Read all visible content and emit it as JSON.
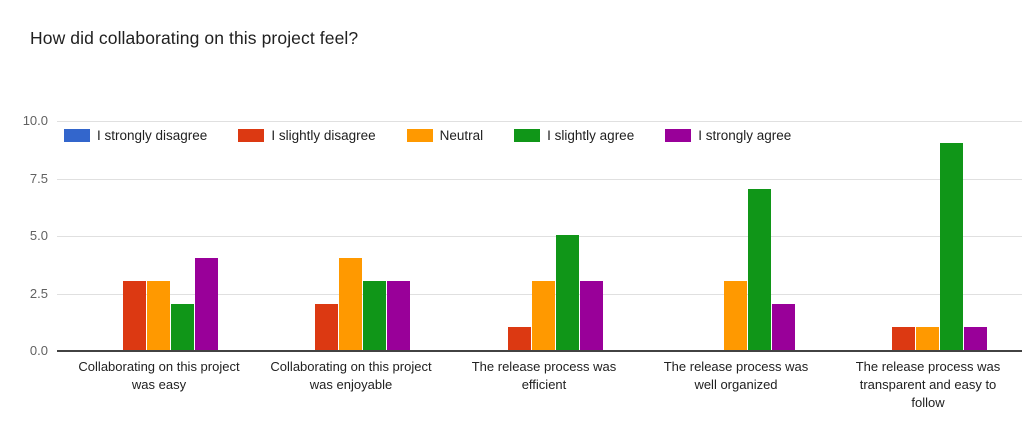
{
  "title": "How did collaborating on this project feel?",
  "chart_data": {
    "type": "bar",
    "title": "How did collaborating on this project feel?",
    "categories": [
      "Collaborating on this project was easy",
      "Collaborating on this project was enjoyable",
      "The release process was efficient",
      "The release process was well organized",
      "The release process was transparent and easy to follow"
    ],
    "series": [
      {
        "name": "I strongly disagree",
        "color": "#3366CC",
        "values": [
          0,
          0,
          0,
          0,
          0
        ]
      },
      {
        "name": "I slightly disagree",
        "color": "#DC3912",
        "values": [
          3,
          2,
          1,
          0,
          1
        ]
      },
      {
        "name": "Neutral",
        "color": "#FF9900",
        "values": [
          3,
          4,
          3,
          3,
          1
        ]
      },
      {
        "name": "I slightly agree",
        "color": "#109618",
        "values": [
          2,
          3,
          5,
          7,
          9
        ]
      },
      {
        "name": "I strongly agree",
        "color": "#990099",
        "values": [
          4,
          3,
          3,
          2,
          1
        ]
      }
    ],
    "ylim": [
      0,
      10
    ],
    "yticks": [
      {
        "label": "0.0",
        "value": 0
      },
      {
        "label": "2.5",
        "value": 2.5
      },
      {
        "label": "5.0",
        "value": 5
      },
      {
        "label": "7.5",
        "value": 7.5
      },
      {
        "label": "10.0",
        "value": 10
      }
    ],
    "grid": true,
    "legend_position": "top-inside",
    "colors": {
      "background": "#ffffff",
      "gridline": "#e0e0e0",
      "axis_line": "#424242",
      "title_text": "#212121",
      "tick_text": "#616161",
      "label_text": "#212121"
    }
  }
}
